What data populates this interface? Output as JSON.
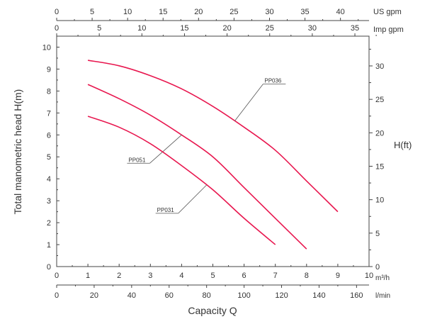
{
  "chart_data": {
    "type": "line",
    "xlabel": "Capacity Q",
    "ylabel": "Total manometric head H(m)",
    "y2label": "H(ft)",
    "x_unit_primary": "m³/h",
    "x_unit_lmin": "l/min",
    "x_unit_usgpm": "US gpm",
    "x_unit_impgpm": "Imp gpm",
    "xlim": [
      0,
      10
    ],
    "ylim": [
      0,
      10.5
    ],
    "grid": false,
    "line_color": "#e8174f",
    "x_ticks": [
      0,
      1,
      2,
      3,
      4,
      5,
      6,
      7,
      8,
      9,
      10
    ],
    "y_ticks": [
      0,
      1,
      2,
      3,
      4,
      5,
      6,
      7,
      8,
      9,
      10
    ],
    "lmin_ticks": [
      0,
      20,
      40,
      60,
      80,
      100,
      120,
      140,
      160
    ],
    "usgpm_ticks": [
      0,
      5,
      10,
      15,
      20,
      25,
      30,
      35,
      40
    ],
    "impgpm_ticks": [
      0,
      5,
      10,
      15,
      20,
      25,
      30,
      35
    ],
    "ft_ticks": [
      0,
      5,
      10,
      15,
      20,
      25,
      30
    ],
    "series": [
      {
        "name": "PP036",
        "x": [
          1,
          2,
          3,
          4,
          5,
          6,
          7,
          8,
          9
        ],
        "y": [
          9.4,
          9.15,
          8.7,
          8.1,
          7.3,
          6.35,
          5.3,
          3.9,
          2.5
        ],
        "label_at": 5.7
      },
      {
        "name": "PP051",
        "x": [
          1,
          2,
          3,
          4,
          5,
          6,
          7,
          8
        ],
        "y": [
          8.3,
          7.65,
          6.9,
          6.0,
          5.0,
          3.6,
          2.2,
          0.8
        ],
        "label_at": 4.0
      },
      {
        "name": "PP031",
        "x": [
          1,
          2,
          3,
          4,
          5,
          6,
          7
        ],
        "y": [
          6.85,
          6.35,
          5.6,
          4.6,
          3.5,
          2.2,
          1.0
        ],
        "label_at": 4.8
      }
    ]
  }
}
